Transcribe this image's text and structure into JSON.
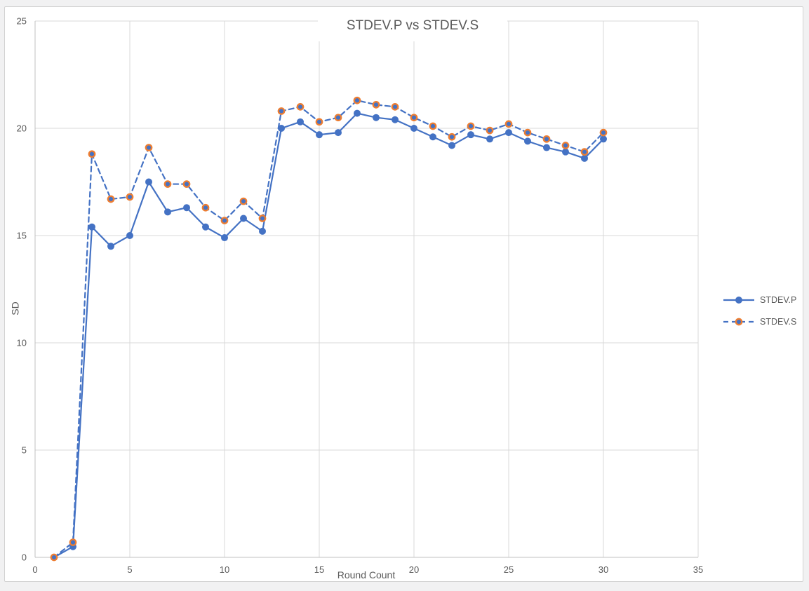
{
  "chart_data": {
    "type": "line",
    "title": "STDEV.P vs STDEV.S",
    "xlabel": "Round Count",
    "ylabel": "SD",
    "xlim": [
      0,
      35
    ],
    "ylim": [
      0,
      25
    ],
    "xticks": [
      0,
      5,
      10,
      15,
      20,
      25,
      30,
      35
    ],
    "yticks": [
      0,
      5,
      10,
      15,
      20,
      25
    ],
    "grid": true,
    "legend_position": "right",
    "x": [
      1,
      2,
      3,
      4,
      5,
      6,
      7,
      8,
      9,
      10,
      11,
      12,
      13,
      14,
      15,
      16,
      17,
      18,
      19,
      20,
      21,
      22,
      23,
      24,
      25,
      26,
      27,
      28,
      29,
      30
    ],
    "series": [
      {
        "name": "STDEV.P",
        "line_style": "solid",
        "color": "#4472C4",
        "marker": {
          "fill": "#4472C4"
        },
        "values": [
          0,
          0.5,
          15.4,
          14.5,
          15.0,
          17.5,
          16.1,
          16.3,
          15.4,
          14.9,
          15.8,
          15.2,
          20.0,
          20.3,
          19.7,
          19.8,
          20.7,
          20.5,
          20.4,
          20.0,
          19.6,
          19.2,
          19.7,
          19.5,
          19.8,
          19.4,
          19.1,
          18.9,
          18.6,
          19.5
        ]
      },
      {
        "name": "STDEV.S",
        "line_style": "dashed",
        "color": "#4472C4",
        "marker": {
          "fill": "#4472C4",
          "ring": "#ED7D31"
        },
        "values": [
          0,
          0.7,
          18.8,
          16.7,
          16.8,
          19.1,
          17.4,
          17.4,
          16.3,
          15.7,
          16.6,
          15.8,
          20.8,
          21.0,
          20.3,
          20.5,
          21.3,
          21.1,
          21.0,
          20.5,
          20.1,
          19.6,
          20.1,
          19.9,
          20.2,
          19.8,
          19.5,
          19.2,
          18.9,
          19.8
        ]
      }
    ],
    "colors": {
      "grid": "#D9D9D9",
      "axis": "#C0C0C0",
      "text": "#595959",
      "background": "#FFFFFF",
      "outer_background": "#F1F1F2",
      "frame_border": "#D2D2D2"
    }
  }
}
